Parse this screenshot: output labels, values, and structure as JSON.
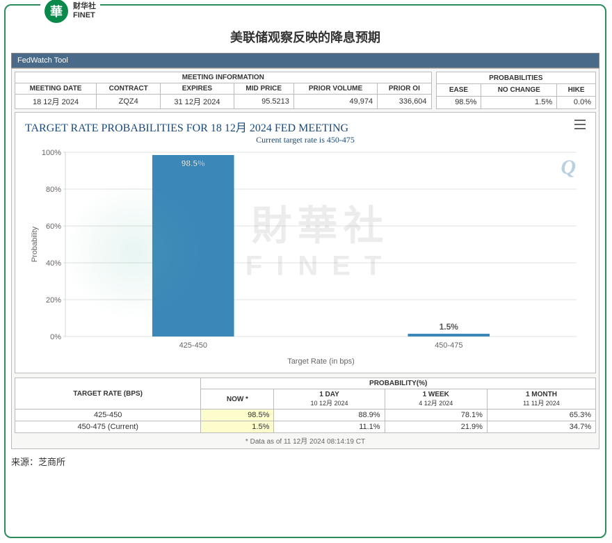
{
  "logo": {
    "brand_cn": "财华社",
    "brand_en": "FINET",
    "mark": "華"
  },
  "page_title": "美联储观察反映的降息预期",
  "toolbar_label": "FedWatch Tool",
  "meeting_info": {
    "section": "MEETING INFORMATION",
    "headers": [
      "MEETING DATE",
      "CONTRACT",
      "EXPIRES",
      "MID PRICE",
      "PRIOR VOLUME",
      "PRIOR OI"
    ],
    "row": [
      "18 12月 2024",
      "ZQZ4",
      "31 12月 2024",
      "95.5213",
      "49,974",
      "336,604"
    ]
  },
  "prob_info": {
    "section": "PROBABILITIES",
    "headers": [
      "EASE",
      "NO CHANGE",
      "HIKE"
    ],
    "row": [
      "98.5%",
      "1.5%",
      "0.0%"
    ]
  },
  "chart": {
    "title": "TARGET RATE PROBABILITIES FOR 18 12月 2024 FED MEETING",
    "subtitle": "Current target rate is 450-475",
    "type": "bar",
    "categories": [
      "425-450",
      "450-475"
    ],
    "values": [
      98.5,
      1.5
    ],
    "labels": [
      "98.5%",
      "1.5%"
    ],
    "bar_color": "#3b87b8",
    "label_color": "#ffffff",
    "label2_color": "#555555",
    "ylabel": "Probability",
    "xlabel": "Target Rate (in bps)",
    "ylim": [
      0,
      100
    ],
    "ytick_step": 20,
    "grid_color": "#e0e0e0",
    "axis_color": "#cfd8dc",
    "background": "#ffffff",
    "title_color": "#1a4a7a",
    "watermark_cn": "財華社",
    "watermark_en": "FINET",
    "q_mark": "Q"
  },
  "prob_table": {
    "section": "PROBABILITY(%)",
    "row_header": "TARGET RATE (BPS)",
    "cols": [
      {
        "h1": "NOW",
        "h2": "*"
      },
      {
        "h1": "1 DAY",
        "h2": "10 12月 2024"
      },
      {
        "h1": "1 WEEK",
        "h2": "4 12月 2024"
      },
      {
        "h1": "1 MONTH",
        "h2": "11 11月 2024"
      }
    ],
    "rows": [
      {
        "label": "425-450",
        "vals": [
          "98.5%",
          "88.9%",
          "78.1%",
          "65.3%"
        ],
        "highlight": true
      },
      {
        "label": "450-475 (Current)",
        "vals": [
          "1.5%",
          "11.1%",
          "21.9%",
          "34.7%"
        ],
        "highlight": true
      }
    ],
    "note": "* Data as of 11 12月 2024 08:14:19 CT"
  },
  "source": "来源：芝商所"
}
